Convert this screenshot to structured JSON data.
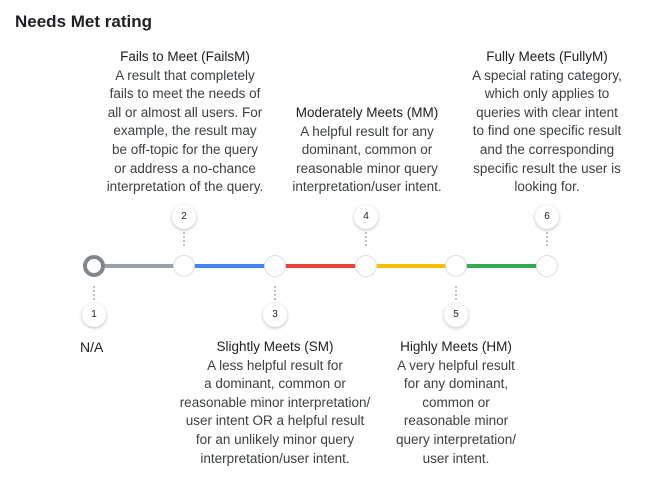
{
  "title": "Needs Met rating",
  "na_label": "N/A",
  "colors": {
    "gray": "#9aa0a6",
    "blue": "#4285f4",
    "red": "#ea4335",
    "yellow": "#fbbc04",
    "green": "#34a853"
  },
  "markers": [
    "1",
    "2",
    "3",
    "4",
    "5",
    "6"
  ],
  "ratings": {
    "fails": {
      "heading": "Fails to Meet (FailsM)",
      "lines": [
        "A result that completely",
        "fails to meet the needs of",
        "all or almost all users. For",
        "example, the result may",
        "be off-topic for the query",
        "or address a no-chance",
        "interpretation of the query."
      ]
    },
    "slightly": {
      "heading": "Slightly Meets (SM)",
      "lines": [
        "A less helpful result for",
        "a dominant, common or",
        "reasonable minor interpretation/",
        "user intent OR a helpful result",
        "for an unlikely minor query",
        "interpretation/user intent."
      ]
    },
    "moderately": {
      "heading": "Moderately Meets (MM)",
      "lines": [
        "A helpful result for any",
        "dominant, common or",
        "reasonable minor query",
        "interpretation/user intent."
      ]
    },
    "highly": {
      "heading": "Highly Meets (HM)",
      "lines": [
        "A very helpful result",
        "for any dominant,",
        "common or",
        "reasonable minor",
        "query interpretation/",
        "user intent."
      ]
    },
    "fully": {
      "heading": "Fully Meets (FullyM)",
      "lines": [
        "A special rating category,",
        "which only applies to",
        "queries with clear intent",
        "to find one specific result",
        "and the corresponding",
        "specific result the user is",
        "looking for."
      ]
    }
  }
}
